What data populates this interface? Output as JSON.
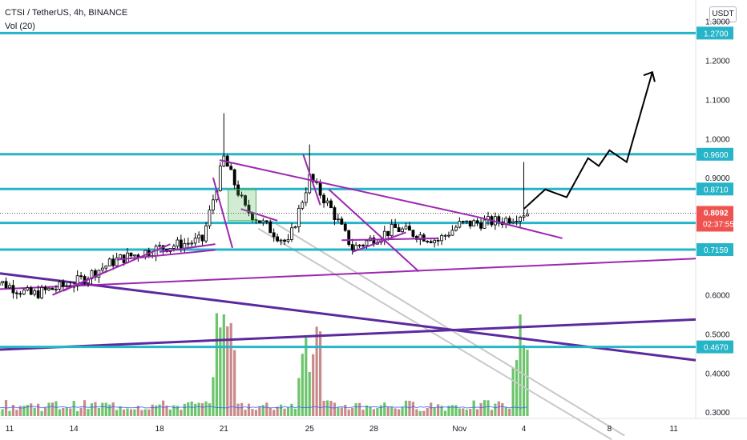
{
  "header": {
    "symbol_line": "CTSI / TetherUS, 4h, BINANCE",
    "indicator_line": "Vol (20)",
    "currency_button": "USDT"
  },
  "colors": {
    "level": "#26b4c8",
    "trend_purple": "#9c27b0",
    "long_trend": "#5b2a9e",
    "channel_gray": "#c8c8c8",
    "candle_up": "#26a69a",
    "candle_down": "#ef5350",
    "volume_up": "#6cc46c",
    "volume_down": "#c98a8a",
    "volume_ma": "#2962ff",
    "current_price": "#ef5350",
    "projection": "#000000"
  },
  "chart_data": {
    "type": "candlestick",
    "symbol": "CTSI / TetherUS",
    "timeframe": "4h",
    "exchange": "BINANCE",
    "ylim": [
      0.3,
      1.3
    ],
    "y_ticks": [
      "1.3000",
      "1.2000",
      "1.1000",
      "1.0000",
      "0.9000",
      "0.6000",
      "0.5000",
      "0.4000",
      "0.3000"
    ],
    "x_ticks": [
      "11",
      "14",
      "18",
      "21",
      "25",
      "28",
      "Nov",
      "4",
      "8",
      "11"
    ],
    "horizontal_levels": [
      {
        "price": 1.27,
        "label": "1.2700"
      },
      {
        "price": 0.96,
        "label": "0.9600"
      },
      {
        "price": 0.871,
        "label": "0.8710"
      },
      {
        "price": 0.7843,
        "label": "0.7843"
      },
      {
        "price": 0.7159,
        "label": "0.7159"
      },
      {
        "price": 0.467,
        "label": "0.4670"
      }
    ],
    "current_price": {
      "price": 0.8092,
      "label": "0.8092",
      "countdown": "02:37:55"
    },
    "price_series": [
      {
        "x": "10 Oct",
        "close": 0.645
      },
      {
        "x": "12 Oct",
        "close": 0.6
      },
      {
        "x": "14 Oct",
        "close": 0.63
      },
      {
        "x": "16 Oct",
        "close": 0.69
      },
      {
        "x": "18 Oct",
        "close": 0.72
      },
      {
        "x": "20 Oct",
        "close": 0.74
      },
      {
        "x": "21 Oct",
        "close": 0.95
      },
      {
        "x": "22 Oct",
        "close": 0.82
      },
      {
        "x": "24 Oct",
        "close": 0.73
      },
      {
        "x": "25 Oct",
        "close": 0.9
      },
      {
        "x": "26 Oct",
        "close": 0.82
      },
      {
        "x": "27 Oct",
        "close": 0.72
      },
      {
        "x": "29 Oct",
        "close": 0.77
      },
      {
        "x": "31 Oct",
        "close": 0.74
      },
      {
        "x": "1 Nov",
        "close": 0.78
      },
      {
        "x": "3 Nov",
        "close": 0.79
      },
      {
        "x": "4 Nov",
        "close": 0.81
      }
    ],
    "notable_highs": [
      {
        "x": "21 Oct",
        "high": 1.065
      },
      {
        "x": "25 Oct",
        "high": 0.985
      },
      {
        "x": "4 Nov",
        "high": 0.94
      }
    ],
    "projection_path": [
      {
        "x": "4 Nov",
        "y": 0.82
      },
      {
        "x": "5 Nov",
        "y": 0.87
      },
      {
        "x": "6 Nov",
        "y": 0.85
      },
      {
        "x": "7 Nov",
        "y": 0.95
      },
      {
        "x": "7.5 Nov",
        "y": 0.93
      },
      {
        "x": "8 Nov",
        "y": 0.97
      },
      {
        "x": "8.8 Nov",
        "y": 0.94
      },
      {
        "x": "10 Nov",
        "y": 1.17
      }
    ],
    "volume": {
      "label": "Vol (20)",
      "notable_spikes": [
        "21 Oct",
        "25 Oct",
        "4 Nov"
      ]
    }
  }
}
